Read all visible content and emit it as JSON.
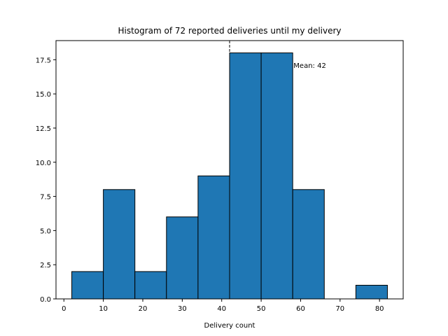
{
  "chart_data": {
    "type": "bar",
    "title": "Histogram of 72 reported deliveries until my delivery",
    "xlabel": "Delivery count",
    "ylabel": "",
    "bins": [
      {
        "x0": 2,
        "x1": 10,
        "count": 2
      },
      {
        "x0": 10,
        "x1": 18,
        "count": 8
      },
      {
        "x0": 18,
        "x1": 26,
        "count": 2
      },
      {
        "x0": 26,
        "x1": 34,
        "count": 6
      },
      {
        "x0": 34,
        "x1": 42,
        "count": 9
      },
      {
        "x0": 42,
        "x1": 50,
        "count": 18
      },
      {
        "x0": 50,
        "x1": 58,
        "count": 18
      },
      {
        "x0": 58,
        "x1": 66,
        "count": 8
      },
      {
        "x0": 66,
        "x1": 74,
        "count": 0
      },
      {
        "x0": 74,
        "x1": 82,
        "count": 1
      }
    ],
    "xlim": [
      -2,
      86
    ],
    "ylim": [
      0,
      18.9
    ],
    "xticks": [
      0,
      10,
      20,
      30,
      40,
      50,
      60,
      70,
      80
    ],
    "xtick_labels": [
      "0",
      "10",
      "20",
      "30",
      "40",
      "50",
      "60",
      "70",
      "80"
    ],
    "yticks": [
      0,
      2.5,
      5,
      7.5,
      10,
      12.5,
      15,
      17.5
    ],
    "ytick_labels": [
      "0.0",
      "2.5",
      "5.0",
      "7.5",
      "10.0",
      "12.5",
      "15.0",
      "17.5"
    ],
    "mean_line": {
      "x": 42,
      "label": "Mean: 42"
    },
    "grid": false,
    "bar_color": "#1f77b4",
    "edge_color": "#000000"
  }
}
